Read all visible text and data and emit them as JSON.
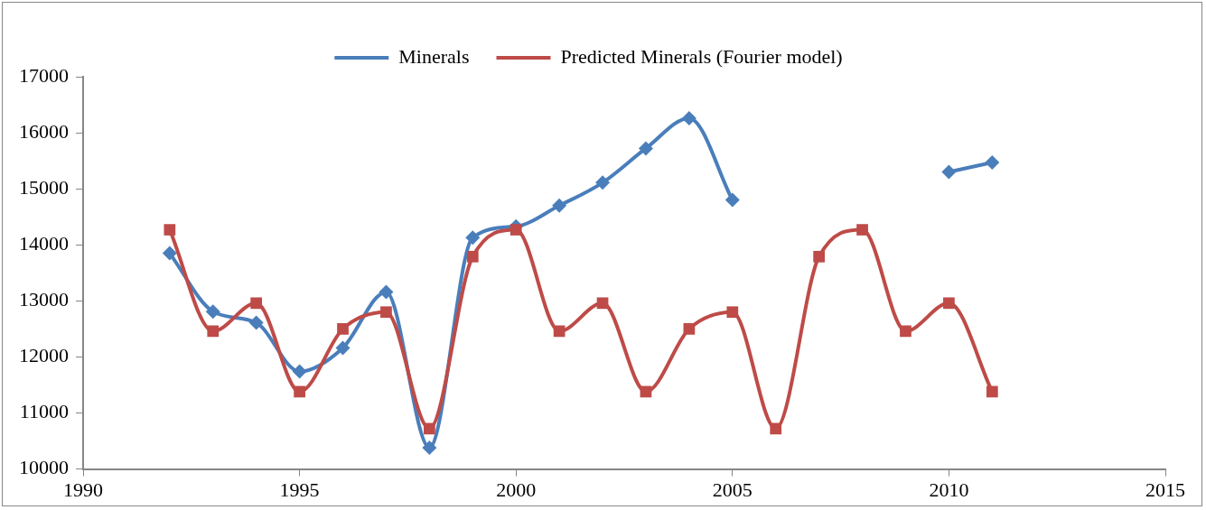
{
  "chart_data": {
    "type": "line",
    "x": [
      1992,
      1993,
      1994,
      1995,
      1996,
      1997,
      1998,
      1999,
      2000,
      2001,
      2002,
      2003,
      2004,
      2005,
      2006,
      2007,
      2008,
      2009,
      2010,
      2011
    ],
    "series": [
      {
        "name": "Minerals",
        "color": "#4a7ebb",
        "marker": "diamond",
        "values": [
          13850,
          12810,
          12610,
          11740,
          12160,
          13160,
          10380,
          14130,
          14330,
          14700,
          15110,
          15720,
          16260,
          14800,
          null,
          null,
          null,
          null,
          15300,
          15470
        ]
      },
      {
        "name": "Predicted Minerals (Fourier model)",
        "color": "#be4b48",
        "marker": "square",
        "values": [
          14270,
          12460,
          12960,
          11380,
          12500,
          12800,
          10720,
          13790,
          14270,
          12460,
          12960,
          11380,
          12500,
          12800,
          10720,
          13790,
          14270,
          12460,
          12960,
          11380
        ]
      }
    ],
    "xlim": [
      1990,
      2015
    ],
    "xticks": [
      1990,
      1995,
      2000,
      2005,
      2010,
      2015
    ],
    "ylim": [
      10000,
      17000
    ],
    "yticks": [
      10000,
      11000,
      12000,
      13000,
      14000,
      15000,
      16000,
      17000
    ],
    "grid": false,
    "legend": "top",
    "line_style": "solid"
  }
}
